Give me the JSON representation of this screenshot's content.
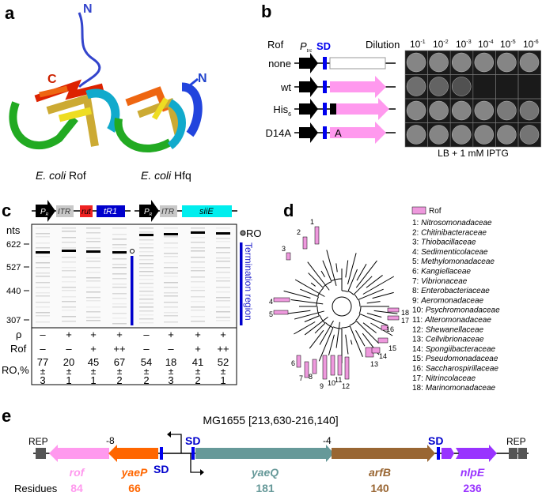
{
  "panel_a": {
    "label": "a",
    "rof_caption_species": "E. coli",
    "rof_caption_name": "Rof",
    "hfq_caption_species": "E. coli",
    "hfq_caption_name": "Hfq",
    "rof_n_term": "N",
    "rof_c_term": "C",
    "hfq_n_term": "N"
  },
  "panel_b": {
    "label": "b",
    "rof_header": "Rof",
    "promoter": "P",
    "promoter_sub": "trc",
    "sd": "SD",
    "dilution_header": "Dilution",
    "dilutions": [
      {
        "base": "10",
        "exp": "-1"
      },
      {
        "base": "10",
        "exp": "-2"
      },
      {
        "base": "10",
        "exp": "-3"
      },
      {
        "base": "10",
        "exp": "-4"
      },
      {
        "base": "10",
        "exp": "-5"
      },
      {
        "base": "10",
        "exp": "-6"
      }
    ],
    "rows": [
      {
        "name": "none",
        "sub": "",
        "insert": ""
      },
      {
        "name": "wt",
        "sub": "",
        "insert": ""
      },
      {
        "name": "His",
        "sub": "6",
        "insert": ""
      },
      {
        "name": "D14A",
        "sub": "",
        "insert": "A"
      }
    ],
    "plate_caption": "LB + 1 mM IPTG",
    "colors": {
      "rof": "#ff99ee",
      "sd": "#0000ee"
    }
  },
  "panel_c": {
    "label": "c",
    "construct1": {
      "promoter": "P",
      "promoter_sub": "R",
      "itr": "ITR",
      "rut": "rut",
      "term": "tR1"
    },
    "construct2": {
      "promoter": "P",
      "promoter_sub": "R",
      "itr": "ITR",
      "gene": "siiE"
    },
    "nts_label": "nts",
    "markers": [
      "622",
      "527",
      "440",
      "307"
    ],
    "ro_label": "RO",
    "termination_label": "Termination region",
    "row_labels": {
      "rho": "ρ",
      "rof": "Rof",
      "ro": "RO,%"
    },
    "lanes": [
      {
        "rho": "–",
        "rof": "–",
        "ro": "77",
        "err": "3"
      },
      {
        "rho": "+",
        "rof": "–",
        "ro": "20",
        "err": "1"
      },
      {
        "rho": "+",
        "rof": "+",
        "ro": "45",
        "err": "1"
      },
      {
        "rho": "+",
        "rof": "++",
        "ro": "67",
        "err": "2"
      },
      {
        "rho": "–",
        "rof": "–",
        "ro": "54",
        "err": "2"
      },
      {
        "rho": "+",
        "rof": "–",
        "ro": "18",
        "err": "3"
      },
      {
        "rho": "+",
        "rof": "+",
        "ro": "41",
        "err": "2"
      },
      {
        "rho": "+",
        "rof": "++",
        "ro": "52",
        "err": "1"
      }
    ],
    "pm": "±"
  },
  "panel_d": {
    "label": "d",
    "legend_title": "Rof",
    "families": [
      "1: Nitrosomonadaceae",
      "2: Chitinibacteraceae",
      "3: Thiobacillaceae",
      "4: Sedimenticolaceae",
      "5: Methylomonadaceae",
      "6: Kangiellaceae",
      "7: Vibrionaceae",
      "8: Enterobacteriaceae",
      "9: Aeromonadaceae",
      "10: Psychromonadaceae",
      "11: Alteromonadaceae",
      "12: Shewanellaceae",
      "13: Cellvibrionaceae",
      "14: Spongiibacteraceae",
      "15: Pseudomonadaceae",
      "16: Saccharospirillaceae",
      "17: Nitrincolaceae",
      "18: Marinomonadaceae"
    ],
    "leaf_numbers": [
      "1",
      "2",
      "3",
      "4",
      "5",
      "6",
      "7",
      "8",
      "9",
      "10",
      "11",
      "12",
      "13",
      "14",
      "15",
      "16",
      "17",
      "18"
    ],
    "color": "#ee99dd"
  },
  "panel_e": {
    "label": "e",
    "title": "MG1655 [213,630-216,140]",
    "rep": "REP",
    "sd": "SD",
    "overlap1": "-8",
    "overlap2": "-4",
    "residues_label": "Residues",
    "genes": [
      {
        "name": "rof",
        "residues": "84",
        "color": "#ff99ee"
      },
      {
        "name": "yaeP",
        "residues": "66",
        "color": "#ff6600"
      },
      {
        "name": "yaeQ",
        "residues": "181",
        "color": "#669999"
      },
      {
        "name": "arfB",
        "residues": "140",
        "color": "#996633"
      },
      {
        "name": "nlpE",
        "residues": "236",
        "color": "#9933ff"
      }
    ]
  }
}
